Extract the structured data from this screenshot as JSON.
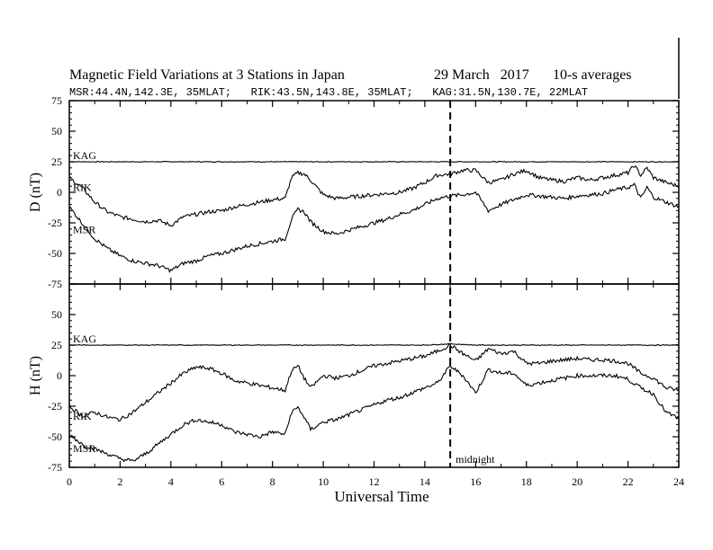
{
  "title": "Magnetic Field Variations at 3 Stations in Japan",
  "date": "29 March   2017",
  "averaging": "10-s averages",
  "stations_line": "MSR:44.4N,142.3E, 35MLAT;   RIK:43.5N,143.8E, 35MLAT;   KAG:31.5N,130.7E, 22MLAT",
  "colors": {
    "trace": "#000000",
    "background": "#ffffff"
  },
  "chart_data": {
    "type": "line",
    "xlabel": "Universal Time",
    "xlim": [
      0,
      24
    ],
    "x_ticks": [
      0,
      2,
      4,
      6,
      8,
      10,
      12,
      14,
      16,
      18,
      20,
      22,
      24
    ],
    "annotation": {
      "label": "midnight",
      "x": 15
    },
    "panels": [
      {
        "ylabel": "D (nT)",
        "ylim": [
          -75,
          75
        ],
        "y_ticks": [
          75,
          50,
          25,
          0,
          -25,
          -50,
          -75
        ],
        "series": [
          {
            "name": "KAG",
            "x": [
              0,
              2,
              4,
              6,
              8,
              10,
              12,
              14,
              16,
              18,
              20,
              22,
              24
            ],
            "y": [
              25,
              25,
              25,
              25,
              25,
              25,
              25,
              25,
              25,
              25,
              25,
              25,
              25
            ]
          },
          {
            "name": "RIK",
            "x": [
              0,
              0.5,
              1,
              1.5,
              2,
              2.5,
              3,
              3.5,
              4,
              4.5,
              5,
              5.5,
              6,
              6.5,
              7,
              7.5,
              8,
              8.5,
              8.75,
              9,
              9.25,
              9.5,
              10,
              10.5,
              11,
              11.5,
              12,
              12.5,
              13,
              13.5,
              14,
              14.5,
              15,
              15.5,
              16,
              16.5,
              17,
              17.5,
              18,
              18.5,
              19,
              19.5,
              20,
              20.5,
              21,
              21.5,
              22,
              22.25,
              22.5,
              22.75,
              23,
              23.5,
              24
            ],
            "y": [
              12,
              4,
              -8,
              -16,
              -20,
              -22,
              -24,
              -23,
              -27,
              -20,
              -18,
              -16,
              -15,
              -12,
              -10,
              -8,
              -6,
              -5,
              12,
              16,
              15,
              10,
              -2,
              -5,
              -4,
              -3,
              -2,
              -1,
              0,
              3,
              8,
              14,
              15,
              18,
              18,
              8,
              10,
              15,
              18,
              12,
              10,
              9,
              12,
              10,
              12,
              14,
              16,
              22,
              14,
              20,
              12,
              8,
              5
            ]
          },
          {
            "name": "MSR",
            "x": [
              0,
              0.5,
              1,
              1.5,
              2,
              2.5,
              3,
              3.5,
              4,
              4.5,
              5,
              5.5,
              6,
              6.5,
              7,
              7.5,
              8,
              8.5,
              8.75,
              9,
              9.25,
              9.5,
              10,
              10.5,
              11,
              11.5,
              12,
              12.5,
              13,
              13.5,
              14,
              14.5,
              15,
              15.5,
              16,
              16.5,
              17,
              17.5,
              18,
              18.5,
              19,
              19.5,
              20,
              20.5,
              21,
              21.5,
              22,
              22.25,
              22.5,
              22.75,
              23,
              23.5,
              24
            ],
            "y": [
              -12,
              -25,
              -38,
              -46,
              -52,
              -56,
              -58,
              -60,
              -64,
              -58,
              -56,
              -52,
              -50,
              -47,
              -44,
              -42,
              -40,
              -38,
              -22,
              -14,
              -16,
              -24,
              -32,
              -34,
              -31,
              -28,
              -25,
              -22,
              -18,
              -15,
              -10,
              -5,
              -3,
              -2,
              0,
              -15,
              -10,
              -6,
              -2,
              -3,
              -4,
              -5,
              -3,
              -2,
              -1,
              2,
              4,
              6,
              -5,
              4,
              -4,
              -8,
              -12
            ]
          }
        ]
      },
      {
        "ylabel": "H (nT)",
        "ylim": [
          -75,
          75
        ],
        "y_ticks": [
          75,
          50,
          25,
          0,
          -25,
          -50,
          -75
        ],
        "series": [
          {
            "name": "KAG",
            "x": [
              0,
              2,
              4,
              6,
              8,
              10,
              12,
              14,
              15,
              16,
              18,
              20,
              22,
              24
            ],
            "y": [
              25,
              25,
              25,
              25,
              25,
              25,
              25,
              25,
              26,
              25,
              25,
              25,
              25,
              25
            ]
          },
          {
            "name": "RIK",
            "x": [
              0,
              0.5,
              1,
              1.5,
              2,
              2.5,
              3,
              3.5,
              4,
              4.5,
              5,
              5.5,
              6,
              6.5,
              7,
              7.5,
              8,
              8.5,
              8.75,
              9,
              9.25,
              9.5,
              10,
              10.5,
              11,
              11.5,
              12,
              12.5,
              13,
              13.5,
              14,
              14.5,
              15,
              15.5,
              16,
              16.5,
              17,
              17.5,
              18,
              18.5,
              19,
              19.5,
              20,
              20.5,
              21,
              21.5,
              22,
              22.5,
              23,
              23.5,
              24
            ],
            "y": [
              -25,
              -33,
              -30,
              -34,
              -36,
              -30,
              -22,
              -14,
              -6,
              2,
              7,
              6,
              2,
              -4,
              -6,
              -8,
              -10,
              -12,
              4,
              8,
              -2,
              -10,
              0,
              -2,
              0,
              4,
              8,
              10,
              12,
              14,
              16,
              20,
              25,
              18,
              12,
              22,
              18,
              20,
              10,
              10,
              12,
              13,
              14,
              13,
              13,
              12,
              10,
              2,
              -2,
              -10,
              -12
            ]
          },
          {
            "name": "MSR",
            "x": [
              0,
              0.5,
              1,
              1.5,
              2,
              2.5,
              3,
              3.5,
              4,
              4.5,
              5,
              5.5,
              6,
              6.5,
              7,
              7.5,
              8,
              8.5,
              8.75,
              9,
              9.25,
              9.5,
              10,
              10.5,
              11,
              11.5,
              12,
              12.5,
              13,
              13.5,
              14,
              14.5,
              15,
              15.5,
              16,
              16.5,
              17,
              17.5,
              18,
              18.5,
              19,
              19.5,
              20,
              20.5,
              21,
              21.5,
              22,
              22.5,
              23,
              23.5,
              24
            ],
            "y": [
              -48,
              -56,
              -60,
              -64,
              -68,
              -70,
              -64,
              -56,
              -48,
              -40,
              -36,
              -38,
              -40,
              -46,
              -48,
              -50,
              -46,
              -48,
              -30,
              -26,
              -34,
              -44,
              -38,
              -36,
              -32,
              -28,
              -24,
              -20,
              -18,
              -14,
              -10,
              -6,
              8,
              0,
              -14,
              5,
              2,
              2,
              -8,
              -6,
              -4,
              -2,
              0,
              0,
              0,
              0,
              -3,
              -10,
              -15,
              -30,
              -35
            ]
          }
        ]
      }
    ]
  }
}
